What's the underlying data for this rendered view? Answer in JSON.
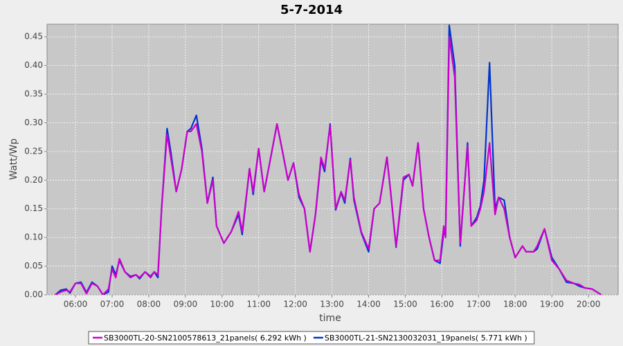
{
  "chart_data": {
    "type": "line",
    "title": "5-7-2014",
    "xlabel": "time",
    "ylabel": "Watt/Wp",
    "xlim": [
      5.225,
      20.81
    ],
    "ylim": [
      0,
      0.472
    ],
    "xticks": [
      {
        "value": 6,
        "label": "06:00"
      },
      {
        "value": 7,
        "label": "07:00"
      },
      {
        "value": 8,
        "label": "08:00"
      },
      {
        "value": 9,
        "label": "09:00"
      },
      {
        "value": 10,
        "label": "10:00"
      },
      {
        "value": 11,
        "label": "11:00"
      },
      {
        "value": 12,
        "label": "12:00"
      },
      {
        "value": 13,
        "label": "13:00"
      },
      {
        "value": 14,
        "label": "14:00"
      },
      {
        "value": 15,
        "label": "15:00"
      },
      {
        "value": 16,
        "label": "16:00"
      },
      {
        "value": 17,
        "label": "17:00"
      },
      {
        "value": 18,
        "label": "18:00"
      },
      {
        "value": 19,
        "label": "19:00"
      },
      {
        "value": 20,
        "label": "20:00"
      }
    ],
    "yticks": [
      {
        "value": 0,
        "label": "0.00"
      },
      0.05,
      {
        "value": 0.1,
        "label": "0.10"
      },
      0.15,
      {
        "value": 0.2,
        "label": "0.20"
      },
      0.25,
      {
        "value": 0.3,
        "label": "0.30"
      },
      0.35,
      {
        "value": 0.4,
        "label": "0.40"
      },
      0.45
    ],
    "grid": true,
    "legend": "bottom",
    "x": [
      5.45,
      5.6,
      5.75,
      5.85,
      6.0,
      6.15,
      6.3,
      6.45,
      6.6,
      6.75,
      6.9,
      7.0,
      7.1,
      7.2,
      7.35,
      7.5,
      7.65,
      7.75,
      7.9,
      8.05,
      8.15,
      8.25,
      8.35,
      8.5,
      8.6,
      8.75,
      8.9,
      9.05,
      9.15,
      9.3,
      9.45,
      9.6,
      9.75,
      9.85,
      10.05,
      10.25,
      10.45,
      10.55,
      10.75,
      10.85,
      11.0,
      11.15,
      11.3,
      11.5,
      11.65,
      11.8,
      11.95,
      12.1,
      12.25,
      12.4,
      12.55,
      12.7,
      12.8,
      12.95,
      13.1,
      13.25,
      13.35,
      13.5,
      13.6,
      13.8,
      14.0,
      14.15,
      14.3,
      14.5,
      14.6,
      14.75,
      14.95,
      15.1,
      15.2,
      15.35,
      15.5,
      15.65,
      15.8,
      15.95,
      16.05,
      16.1,
      16.2,
      16.35,
      16.5,
      16.7,
      16.8,
      16.95,
      17.05,
      17.15,
      17.3,
      17.45,
      17.55,
      17.7,
      17.85,
      18.0,
      18.2,
      18.3,
      18.5,
      18.6,
      18.8,
      19.0,
      19.2,
      19.4,
      19.6,
      19.75,
      19.9,
      20.1,
      20.35
    ],
    "series": [
      {
        "name": "SB3000TL-20-SN2100578613_21panels( 6.292 kWh )",
        "color": "#cc00cc",
        "values": [
          0,
          0.005,
          0.008,
          0.005,
          0.02,
          0.02,
          0.002,
          0.02,
          0.015,
          0,
          0.01,
          0.045,
          0.03,
          0.063,
          0.04,
          0.03,
          0.035,
          0.03,
          0.04,
          0.03,
          0.04,
          0.035,
          0.15,
          0.28,
          0.24,
          0.18,
          0.22,
          0.285,
          0.285,
          0.298,
          0.25,
          0.16,
          0.2,
          0.12,
          0.09,
          0.11,
          0.145,
          0.11,
          0.22,
          0.18,
          0.255,
          0.18,
          0.23,
          0.298,
          0.25,
          0.2,
          0.23,
          0.175,
          0.15,
          0.075,
          0.14,
          0.24,
          0.22,
          0.295,
          0.15,
          0.18,
          0.165,
          0.235,
          0.17,
          0.11,
          0.08,
          0.15,
          0.16,
          0.24,
          0.18,
          0.085,
          0.205,
          0.21,
          0.19,
          0.265,
          0.15,
          0.1,
          0.06,
          0.06,
          0.12,
          0.1,
          0.45,
          0.38,
          0.09,
          0.26,
          0.12,
          0.13,
          0.15,
          0.18,
          0.265,
          0.14,
          0.17,
          0.15,
          0.1,
          0.065,
          0.085,
          0.075,
          0.075,
          0.085,
          0.115,
          0.06,
          0.045,
          0.025,
          0.02,
          0.018,
          0.012,
          0.01,
          0
        ]
      },
      {
        "name": "SB3000TL-21-SN2130032031_19panels( 5.771 kWh )",
        "color": "#0033cc",
        "values": [
          0,
          0.008,
          0.01,
          0.003,
          0.02,
          0.022,
          0.004,
          0.022,
          0.015,
          0,
          0.005,
          0.05,
          0.035,
          0.06,
          0.04,
          0.032,
          0.035,
          0.028,
          0.04,
          0.032,
          0.04,
          0.03,
          0.15,
          0.29,
          0.25,
          0.18,
          0.22,
          0.285,
          0.29,
          0.313,
          0.255,
          0.16,
          0.205,
          0.12,
          0.09,
          0.11,
          0.14,
          0.105,
          0.22,
          0.175,
          0.255,
          0.18,
          0.23,
          0.298,
          0.25,
          0.2,
          0.23,
          0.17,
          0.15,
          0.075,
          0.14,
          0.235,
          0.215,
          0.298,
          0.148,
          0.178,
          0.16,
          0.238,
          0.165,
          0.108,
          0.075,
          0.15,
          0.16,
          0.24,
          0.18,
          0.083,
          0.2,
          0.21,
          0.19,
          0.265,
          0.15,
          0.1,
          0.06,
          0.055,
          0.11,
          0.105,
          0.47,
          0.4,
          0.085,
          0.265,
          0.12,
          0.135,
          0.155,
          0.2,
          0.405,
          0.15,
          0.17,
          0.165,
          0.1,
          0.065,
          0.085,
          0.075,
          0.075,
          0.08,
          0.115,
          0.065,
          0.045,
          0.022,
          0.02,
          0.015,
          0.012,
          0.01,
          0
        ]
      }
    ]
  }
}
